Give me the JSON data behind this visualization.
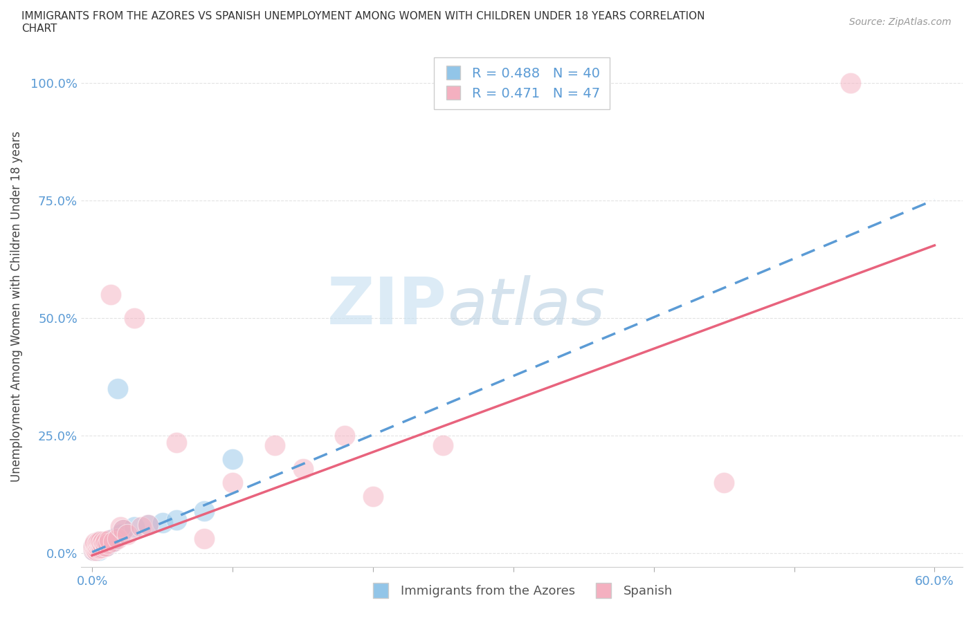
{
  "title_line1": "IMMIGRANTS FROM THE AZORES VS SPANISH UNEMPLOYMENT AMONG WOMEN WITH CHILDREN UNDER 18 YEARS CORRELATION",
  "title_line2": "CHART",
  "source": "Source: ZipAtlas.com",
  "ylabel": "Unemployment Among Women with Children Under 18 years",
  "watermark_zip": "ZIP",
  "watermark_atlas": "atlas",
  "legend_r1": "R = 0.488   N = 40",
  "legend_r2": "R = 0.471   N = 47",
  "color_blue": "#92c5e8",
  "color_pink": "#f4b0c0",
  "trendline_blue_color": "#5b9bd5",
  "trendline_pink_color": "#e8637d",
  "series1_name": "Immigrants from the Azores",
  "series2_name": "Spanish",
  "blue_x": [
    0.001,
    0.001,
    0.001,
    0.002,
    0.002,
    0.002,
    0.003,
    0.003,
    0.003,
    0.003,
    0.004,
    0.004,
    0.004,
    0.005,
    0.005,
    0.005,
    0.005,
    0.006,
    0.006,
    0.006,
    0.007,
    0.007,
    0.008,
    0.008,
    0.009,
    0.01,
    0.01,
    0.011,
    0.012,
    0.013,
    0.015,
    0.018,
    0.02,
    0.022,
    0.03,
    0.04,
    0.05,
    0.06,
    0.08,
    0.1
  ],
  "blue_y": [
    0.005,
    0.01,
    0.015,
    0.008,
    0.012,
    0.018,
    0.005,
    0.01,
    0.015,
    0.02,
    0.008,
    0.015,
    0.022,
    0.005,
    0.01,
    0.018,
    0.025,
    0.01,
    0.015,
    0.02,
    0.012,
    0.018,
    0.015,
    0.022,
    0.018,
    0.015,
    0.025,
    0.02,
    0.025,
    0.022,
    0.03,
    0.35,
    0.04,
    0.05,
    0.055,
    0.06,
    0.065,
    0.07,
    0.09,
    0.2
  ],
  "pink_x": [
    0.001,
    0.001,
    0.001,
    0.002,
    0.002,
    0.002,
    0.002,
    0.003,
    0.003,
    0.003,
    0.004,
    0.004,
    0.004,
    0.005,
    0.005,
    0.005,
    0.006,
    0.006,
    0.006,
    0.007,
    0.007,
    0.008,
    0.008,
    0.009,
    0.01,
    0.01,
    0.011,
    0.012,
    0.013,
    0.015,
    0.018,
    0.02,
    0.022,
    0.025,
    0.03,
    0.035,
    0.04,
    0.06,
    0.08,
    0.1,
    0.13,
    0.15,
    0.18,
    0.2,
    0.25,
    0.45,
    0.54
  ],
  "pink_y": [
    0.005,
    0.01,
    0.015,
    0.008,
    0.012,
    0.018,
    0.022,
    0.005,
    0.012,
    0.018,
    0.008,
    0.015,
    0.022,
    0.01,
    0.018,
    0.025,
    0.01,
    0.018,
    0.025,
    0.012,
    0.02,
    0.015,
    0.025,
    0.02,
    0.015,
    0.025,
    0.02,
    0.028,
    0.55,
    0.025,
    0.03,
    0.055,
    0.05,
    0.04,
    0.5,
    0.055,
    0.06,
    0.235,
    0.03,
    0.15,
    0.23,
    0.18,
    0.25,
    0.12,
    0.23,
    0.15,
    1.0
  ],
  "background_color": "#ffffff",
  "grid_color": "#e0e0e0",
  "trendline_blue_intercept": 0.002,
  "trendline_blue_slope": 1.25,
  "trendline_pink_intercept": -0.005,
  "trendline_pink_slope": 1.1
}
